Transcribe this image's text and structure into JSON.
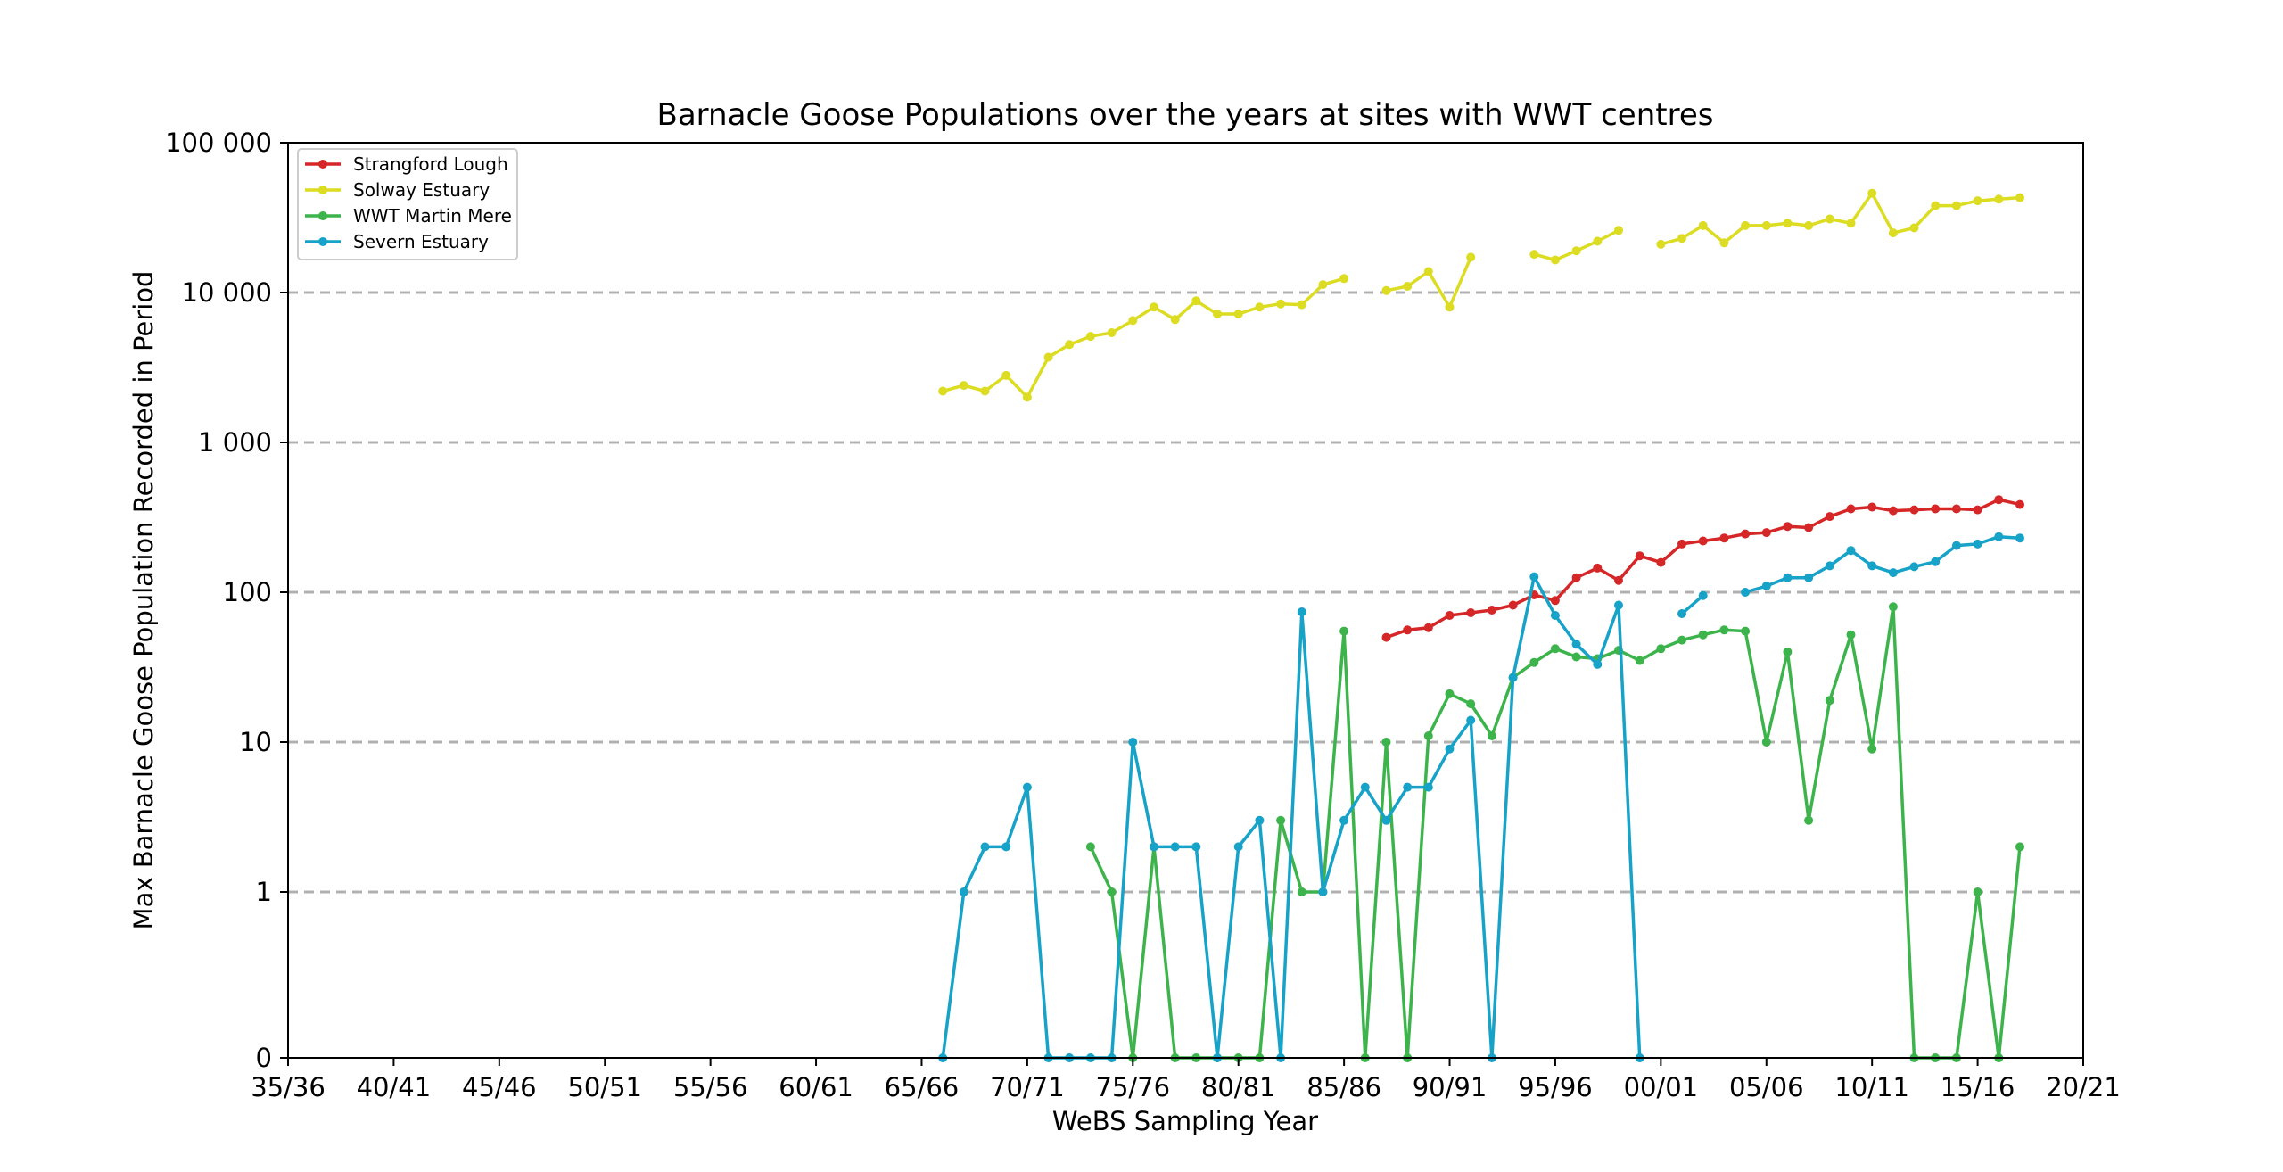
{
  "chart_data": {
    "type": "line",
    "title": "Barnacle Goose Populations over the years at sites with WWT centres",
    "xlabel": "WeBS Sampling Year",
    "ylabel": "Max Barnacle Goose Population Recorded in Period",
    "y_scale": "symlog",
    "x_tick_labels": [
      "35/36",
      "40/41",
      "45/46",
      "50/51",
      "55/56",
      "60/61",
      "65/66",
      "70/71",
      "75/76",
      "80/81",
      "85/86",
      "90/91",
      "95/96",
      "00/01",
      "05/06",
      "10/11",
      "15/16",
      "20/21"
    ],
    "x_tick_years": [
      1935,
      1940,
      1945,
      1950,
      1955,
      1960,
      1965,
      1970,
      1975,
      1980,
      1985,
      1990,
      1995,
      2000,
      2005,
      2010,
      2015,
      2020
    ],
    "xlim": [
      1935,
      2020
    ],
    "y_tick_labels": [
      "0",
      "1",
      "10",
      "100",
      "1 000",
      "10 000",
      "100 000"
    ],
    "y_tick_values": [
      0,
      1,
      10,
      100,
      1000,
      10000,
      100000
    ],
    "ylim": [
      0,
      100000
    ],
    "grid": "horizontal dashed at major y ticks",
    "legend_position": "top-left",
    "series": [
      {
        "name": "Strangford Lough",
        "color": "#d62728",
        "x": [
          1987,
          1988,
          1989,
          1990,
          1991,
          1992,
          1993,
          1994,
          1995,
          1996,
          1997,
          1998,
          1999,
          2000,
          2001,
          2002,
          2003,
          2004,
          2005,
          2006,
          2007,
          2008,
          2009,
          2010,
          2011,
          2012,
          2013,
          2014,
          2015,
          2016,
          2017
        ],
        "y": [
          50,
          56,
          58,
          70,
          73,
          76,
          82,
          96,
          88,
          125,
          145,
          120,
          175,
          158,
          210,
          220,
          230,
          245,
          250,
          275,
          270,
          320,
          360,
          370,
          350,
          355,
          360,
          360,
          355,
          415,
          385
        ]
      },
      {
        "name": "Solway Estuary",
        "color": "#dcdc22",
        "x": [
          1966,
          1967,
          1968,
          1969,
          1970,
          1971,
          1972,
          1973,
          1974,
          1975,
          1976,
          1977,
          1978,
          1979,
          1980,
          1981,
          1982,
          1983,
          1984,
          1985,
          null,
          1987,
          1988,
          1989,
          1990,
          1991,
          null,
          1994,
          1995,
          1996,
          1997,
          1998,
          null,
          2000,
          2001,
          2002,
          2003,
          2004,
          2005,
          2006,
          2007,
          2008,
          2009,
          2010,
          2011,
          2012,
          2013,
          2014,
          2015,
          2016,
          2017
        ],
        "y": [
          2200,
          2400,
          2200,
          2800,
          2000,
          3700,
          4500,
          5100,
          5400,
          6500,
          8000,
          6600,
          8800,
          7200,
          7200,
          8000,
          8400,
          8300,
          11300,
          12400,
          null,
          10300,
          11000,
          13800,
          8000,
          17200,
          null,
          18000,
          16500,
          19000,
          22000,
          26000,
          null,
          21000,
          23000,
          28000,
          21500,
          28000,
          28000,
          29000,
          28000,
          31000,
          29000,
          46000,
          25000,
          27000,
          38000,
          38000,
          41000,
          42000,
          43000
        ]
      },
      {
        "name": "WWT Martin Mere",
        "color": "#3cb44b",
        "x": [
          1973,
          1974,
          1975,
          1976,
          1977,
          1978,
          1979,
          1980,
          1981,
          1982,
          1983,
          1984,
          1985,
          1986,
          1987,
          1988,
          1989,
          1990,
          1991,
          1992,
          1993,
          1994,
          1995,
          1996,
          1997,
          1998,
          1999,
          2000,
          2001,
          2002,
          2003,
          2004,
          2005,
          2006,
          2007,
          2008,
          2009,
          2010,
          2011,
          2012,
          2013,
          2014,
          2015,
          2016,
          2017
        ],
        "y": [
          2,
          1,
          0,
          2,
          0,
          0,
          0,
          0,
          0,
          3,
          1,
          1,
          55,
          0,
          10,
          0,
          11,
          21,
          18,
          11,
          27,
          34,
          42,
          37,
          36,
          41,
          35,
          42,
          48,
          52,
          56,
          55,
          10,
          40,
          3,
          19,
          52,
          9,
          80,
          0,
          0,
          0,
          1,
          0,
          2
        ]
      },
      {
        "name": "Severn Estuary",
        "color": "#17a2c8",
        "x": [
          1966,
          1967,
          1968,
          1969,
          1970,
          1971,
          1972,
          1973,
          1974,
          1975,
          1976,
          1977,
          1978,
          1979,
          1980,
          1981,
          1982,
          1983,
          1984,
          1985,
          1986,
          1987,
          1988,
          1989,
          1990,
          1991,
          1992,
          1993,
          1994,
          1995,
          1996,
          1997,
          1998,
          1999,
          null,
          2001,
          2002,
          null,
          2004,
          2005,
          2006,
          2007,
          2008,
          2009,
          2010,
          2011,
          2012,
          2013,
          2014,
          2015,
          2016,
          2017
        ],
        "y": [
          0,
          1,
          2,
          2,
          5,
          0,
          0,
          0,
          0,
          10,
          2,
          2,
          2,
          0,
          2,
          3,
          0,
          74,
          1,
          3,
          5,
          3,
          5,
          5,
          9,
          14,
          0,
          27,
          127,
          70,
          45,
          33,
          82,
          0,
          null,
          72,
          95,
          null,
          100,
          110,
          125,
          125,
          150,
          190,
          150,
          135,
          148,
          160,
          205,
          210,
          235,
          230
        ]
      }
    ]
  }
}
